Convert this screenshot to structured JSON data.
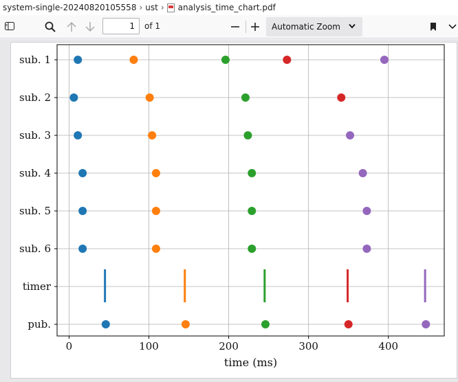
{
  "breadcrumb": {
    "items": [
      "system-single-20240820105558",
      "ust",
      "analysis_time_chart.pdf"
    ]
  },
  "toolbar": {
    "page_value": "1",
    "page_count": "of 1",
    "zoom_label": "Automatic Zoom",
    "icons": [
      "sidebar-toggle-icon",
      "search-icon",
      "arrow-up-icon",
      "arrow-down-icon",
      "minus-icon",
      "plus-icon",
      "chevron-down-icon",
      "bookmark-icon",
      "more-icon"
    ]
  },
  "colors": {
    "blue": "#1f77b4",
    "orange": "#ff7f0e",
    "green": "#2ca02c",
    "red": "#d62728",
    "purple": "#9467bd"
  },
  "chart_data": {
    "type": "scatter",
    "xlabel": "time (ms)",
    "xlim": [
      -15,
      470
    ],
    "xticks": [
      0,
      100,
      200,
      300,
      400
    ],
    "grid": true,
    "categories": [
      "sub. 1",
      "sub. 2",
      "sub. 3",
      "sub. 4",
      "sub. 5",
      "sub. 6",
      "timer",
      "pub."
    ],
    "series_colors": [
      "#1f77b4",
      "#ff7f0e",
      "#2ca02c",
      "#d62728",
      "#9467bd"
    ],
    "rows": [
      {
        "label": "sub. 1",
        "marker": "dot",
        "points": [
          [
            11,
            0
          ],
          [
            81,
            1
          ],
          [
            196,
            2
          ],
          [
            273,
            3
          ],
          [
            395,
            4
          ]
        ]
      },
      {
        "label": "sub. 2",
        "marker": "dot",
        "points": [
          [
            6,
            0
          ],
          [
            101,
            1
          ],
          [
            221,
            2
          ],
          [
            341,
            3
          ]
        ]
      },
      {
        "label": "sub. 3",
        "marker": "dot",
        "points": [
          [
            11,
            0
          ],
          [
            104,
            1
          ],
          [
            224,
            2
          ],
          [
            352,
            4
          ]
        ]
      },
      {
        "label": "sub. 4",
        "marker": "dot",
        "points": [
          [
            17,
            0
          ],
          [
            109,
            1
          ],
          [
            229,
            2
          ],
          [
            368,
            4
          ]
        ]
      },
      {
        "label": "sub. 5",
        "marker": "dot",
        "points": [
          [
            17,
            0
          ],
          [
            109,
            1
          ],
          [
            229,
            2
          ],
          [
            373,
            4
          ]
        ]
      },
      {
        "label": "sub. 6",
        "marker": "dot",
        "points": [
          [
            17,
            0
          ],
          [
            109,
            1
          ],
          [
            229,
            2
          ],
          [
            373,
            4
          ]
        ]
      },
      {
        "label": "timer",
        "marker": "line",
        "points": [
          [
            45,
            0
          ],
          [
            145,
            1
          ],
          [
            245,
            2
          ],
          [
            349,
            3
          ],
          [
            446,
            4
          ]
        ]
      },
      {
        "label": "pub.",
        "marker": "dot",
        "points": [
          [
            46,
            0
          ],
          [
            146,
            1
          ],
          [
            246,
            2
          ],
          [
            350,
            3
          ],
          [
            447,
            4
          ]
        ]
      }
    ]
  }
}
